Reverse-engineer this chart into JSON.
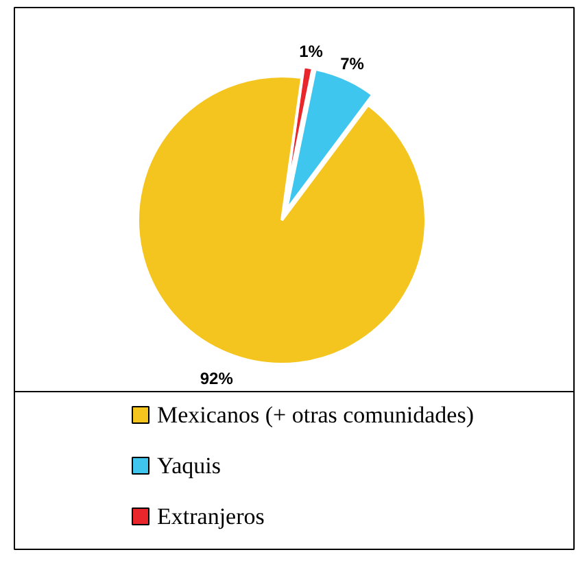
{
  "chart_data": {
    "type": "pie",
    "categories": [
      "Extranjeros",
      "Yaquis",
      "Mexicanos (+ otras comunidades)"
    ],
    "values": [
      1,
      7,
      92
    ],
    "colors": [
      "#e8262b",
      "#3ec6ef",
      "#f5c51f"
    ],
    "value_labels": [
      "1%",
      "7%",
      "92%"
    ],
    "legend": "bottom"
  }
}
